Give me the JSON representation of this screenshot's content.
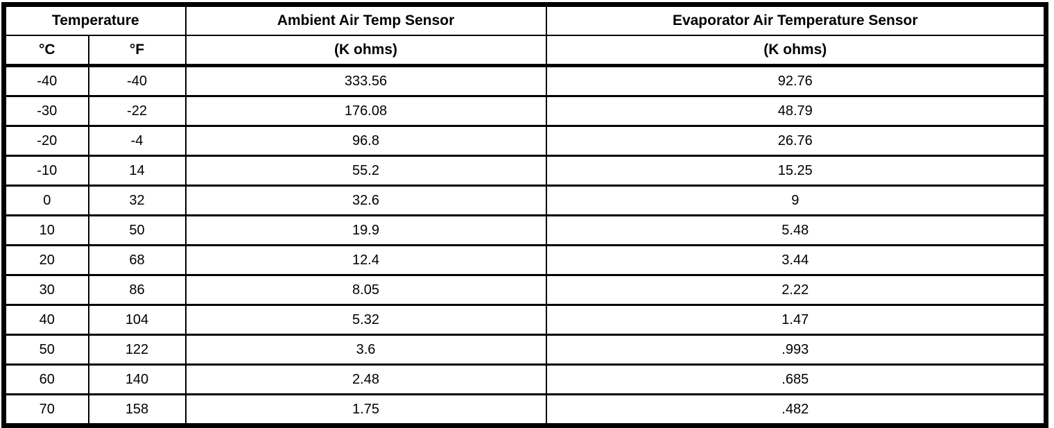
{
  "table": {
    "header": {
      "temperature_group": "Temperature",
      "ambient_title": "Ambient Air Temp Sensor",
      "evaporator_title": "Evaporator Air Temperature Sensor",
      "celsius_label": "°C",
      "fahrenheit_label": "°F",
      "ambient_unit": "(K ohms)",
      "evaporator_unit": "(K ohms)"
    },
    "rows": [
      {
        "c": "-40",
        "f": "-40",
        "ambient": "333.56",
        "evaporator": "92.76"
      },
      {
        "c": "-30",
        "f": "-22",
        "ambient": "176.08",
        "evaporator": "48.79"
      },
      {
        "c": "-20",
        "f": "-4",
        "ambient": "96.8",
        "evaporator": "26.76"
      },
      {
        "c": "-10",
        "f": "14",
        "ambient": "55.2",
        "evaporator": "15.25"
      },
      {
        "c": "0",
        "f": "32",
        "ambient": "32.6",
        "evaporator": "9"
      },
      {
        "c": "10",
        "f": "50",
        "ambient": "19.9",
        "evaporator": "5.48"
      },
      {
        "c": "20",
        "f": "68",
        "ambient": "12.4",
        "evaporator": "3.44"
      },
      {
        "c": "30",
        "f": "86",
        "ambient": "8.05",
        "evaporator": "2.22"
      },
      {
        "c": "40",
        "f": "104",
        "ambient": "5.32",
        "evaporator": "1.47"
      },
      {
        "c": "50",
        "f": "122",
        "ambient": "3.6",
        "evaporator": ".993"
      },
      {
        "c": "60",
        "f": "140",
        "ambient": "2.48",
        "evaporator": ".685"
      },
      {
        "c": "70",
        "f": "158",
        "ambient": "1.75",
        "evaporator": ".482"
      }
    ]
  },
  "colors": {
    "border": "#000000",
    "background": "#ffffff",
    "text": "#000000"
  }
}
